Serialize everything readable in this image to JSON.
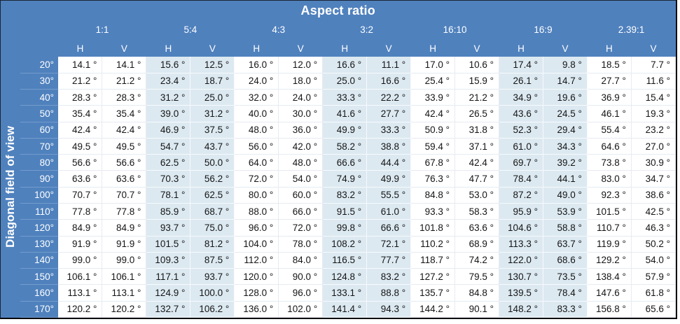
{
  "colors": {
    "header_blue": "#4F81BD",
    "stripe_blue": "#DCE9F1",
    "cell_white": "#FFFFFF",
    "header_text": "#FFFFFF",
    "value_text": "#151515",
    "outer_border": "#07080D",
    "gridline": "#E6EBF1"
  },
  "chart_data": {
    "type": "table",
    "title": "Aspect ratio",
    "row_header_title": "Diagonal field of view",
    "column_groups": [
      "1:1",
      "5:4",
      "4:3",
      "3:2",
      "16:10",
      "16:9",
      "2.39:1"
    ],
    "striped_group_indices": [
      1,
      3,
      5
    ],
    "sub_columns": [
      "H",
      "V"
    ],
    "unit": "°",
    "value_suffix": " °",
    "rows": [
      {
        "label": "20°",
        "values": [
          14.1,
          14.1,
          15.6,
          12.5,
          16.0,
          12.0,
          16.6,
          11.1,
          17.0,
          10.6,
          17.4,
          9.8,
          18.5,
          7.7
        ]
      },
      {
        "label": "30°",
        "values": [
          21.2,
          21.2,
          23.4,
          18.7,
          24.0,
          18.0,
          25.0,
          16.6,
          25.4,
          15.9,
          26.1,
          14.7,
          27.7,
          11.6
        ]
      },
      {
        "label": "40°",
        "values": [
          28.3,
          28.3,
          31.2,
          25.0,
          32.0,
          24.0,
          33.3,
          22.2,
          33.9,
          21.2,
          34.9,
          19.6,
          36.9,
          15.4
        ]
      },
      {
        "label": "50°",
        "values": [
          35.4,
          35.4,
          39.0,
          31.2,
          40.0,
          30.0,
          41.6,
          27.7,
          42.4,
          26.5,
          43.6,
          24.5,
          46.1,
          19.3
        ]
      },
      {
        "label": "60°",
        "values": [
          42.4,
          42.4,
          46.9,
          37.5,
          48.0,
          36.0,
          49.9,
          33.3,
          50.9,
          31.8,
          52.3,
          29.4,
          55.4,
          23.2
        ]
      },
      {
        "label": "70°",
        "values": [
          49.5,
          49.5,
          54.7,
          43.7,
          56.0,
          42.0,
          58.2,
          38.8,
          59.4,
          37.1,
          61.0,
          34.3,
          64.6,
          27.0
        ]
      },
      {
        "label": "80°",
        "values": [
          56.6,
          56.6,
          62.5,
          50.0,
          64.0,
          48.0,
          66.6,
          44.4,
          67.8,
          42.4,
          69.7,
          39.2,
          73.8,
          30.9
        ]
      },
      {
        "label": "90°",
        "values": [
          63.6,
          63.6,
          70.3,
          56.2,
          72.0,
          54.0,
          74.9,
          49.9,
          76.3,
          47.7,
          78.4,
          44.1,
          83.0,
          34.7
        ]
      },
      {
        "label": "100°",
        "values": [
          70.7,
          70.7,
          78.1,
          62.5,
          80.0,
          60.0,
          83.2,
          55.5,
          84.8,
          53.0,
          87.2,
          49.0,
          92.3,
          38.6
        ]
      },
      {
        "label": "110°",
        "values": [
          77.8,
          77.8,
          85.9,
          68.7,
          88.0,
          66.0,
          91.5,
          61.0,
          93.3,
          58.3,
          95.9,
          53.9,
          101.5,
          42.5
        ]
      },
      {
        "label": "120°",
        "values": [
          84.9,
          84.9,
          93.7,
          75.0,
          96.0,
          72.0,
          99.8,
          66.6,
          101.8,
          63.6,
          104.6,
          58.8,
          110.7,
          46.3
        ]
      },
      {
        "label": "130°",
        "values": [
          91.9,
          91.9,
          101.5,
          81.2,
          104.0,
          78.0,
          108.2,
          72.1,
          110.2,
          68.9,
          113.3,
          63.7,
          119.9,
          50.2
        ]
      },
      {
        "label": "140°",
        "values": [
          99.0,
          99.0,
          109.3,
          87.5,
          112.0,
          84.0,
          116.5,
          77.7,
          118.7,
          74.2,
          122.0,
          68.6,
          129.2,
          54.0
        ]
      },
      {
        "label": "150°",
        "values": [
          106.1,
          106.1,
          117.1,
          93.7,
          120.0,
          90.0,
          124.8,
          83.2,
          127.2,
          79.5,
          130.7,
          73.5,
          138.4,
          57.9
        ]
      },
      {
        "label": "160°",
        "values": [
          113.1,
          113.1,
          124.9,
          100.0,
          128.0,
          96.0,
          133.1,
          88.8,
          135.7,
          84.8,
          139.5,
          78.4,
          147.6,
          61.8
        ]
      },
      {
        "label": "170°",
        "values": [
          120.2,
          120.2,
          132.7,
          106.2,
          136.0,
          102.0,
          141.4,
          94.3,
          144.2,
          90.1,
          148.2,
          83.3,
          156.8,
          65.6
        ]
      }
    ]
  }
}
